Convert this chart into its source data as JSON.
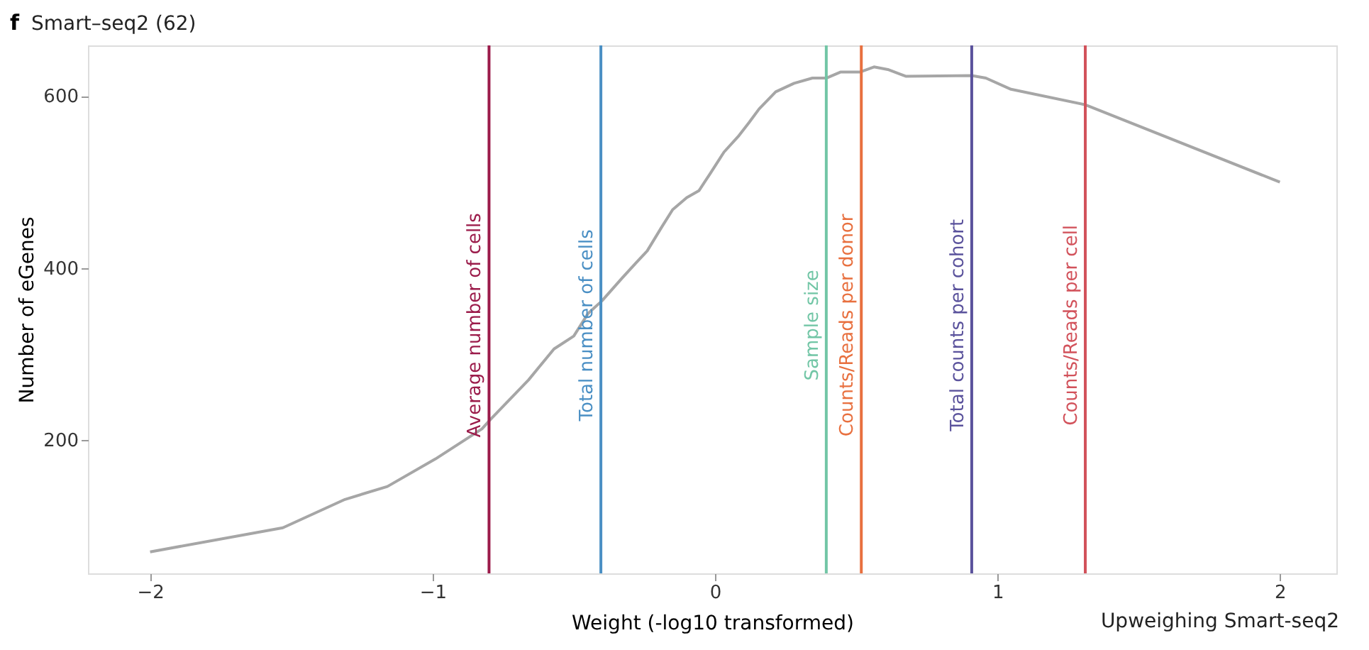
{
  "chart_data": {
    "type": "line",
    "title": "Smart–seq2 (62)",
    "xlabel": "Weight (-log10 transformed)",
    "ylabel": "Number of eGenes",
    "x": [
      -2,
      -1.53,
      -1.31,
      -1.16,
      -0.99,
      -0.825,
      -0.795,
      -0.66,
      -0.57,
      -0.5,
      -0.45,
      -0.4,
      -0.33,
      -0.28,
      -0.24,
      -0.19,
      -0.15,
      -0.1,
      -0.057,
      -0.017,
      0.032,
      0.082,
      0.12,
      0.156,
      0.215,
      0.28,
      0.345,
      0.394,
      0.444,
      0.513,
      0.563,
      0.612,
      0.677,
      0.909,
      0.959,
      1.048,
      1.311,
      2.0
    ],
    "series": [
      {
        "color": "#a6a6a6",
        "values": [
          70,
          98,
          131,
          146,
          178,
          213,
          224,
          270,
          306,
          321,
          347,
          362,
          388,
          406,
          420,
          447,
          468,
          482,
          490,
          510,
          535,
          553,
          569,
          585,
          605,
          615,
          621,
          621,
          628,
          628,
          634,
          631,
          623,
          624,
          621,
          608,
          590,
          500
        ]
      }
    ],
    "xlim": [
      -2.22,
      2.2
    ],
    "xticks": [
      {
        "value": -2,
        "label": "−2"
      },
      {
        "value": -1,
        "label": "−1"
      },
      0,
      1,
      2
    ],
    "ylim": [
      45,
      659
    ],
    "yticks": [
      200,
      400,
      600
    ],
    "grid": false,
    "marker": "none",
    "line_style": "solid",
    "ref_lines": [
      {
        "axis": "x",
        "value": -0.8,
        "label": "Average number of cells",
        "color": "#9b1b4a"
      },
      {
        "axis": "x",
        "value": -0.404,
        "label": "Total number of cells",
        "color": "#4a8fc4"
      },
      {
        "axis": "x",
        "value": 0.394,
        "label": "Sample size",
        "color": "#72c6a6"
      },
      {
        "axis": "x",
        "value": 0.518,
        "label": "Counts/Reads per donor",
        "color": "#e8703f"
      },
      {
        "axis": "x",
        "value": 0.909,
        "label": "Total counts per cohort",
        "color": "#5a529c"
      },
      {
        "axis": "x",
        "value": 1.311,
        "label": "Counts/Reads per cell",
        "color": "#d2525b"
      }
    ],
    "annotations": [
      "f",
      "Upweighing Smart-seq2"
    ]
  }
}
